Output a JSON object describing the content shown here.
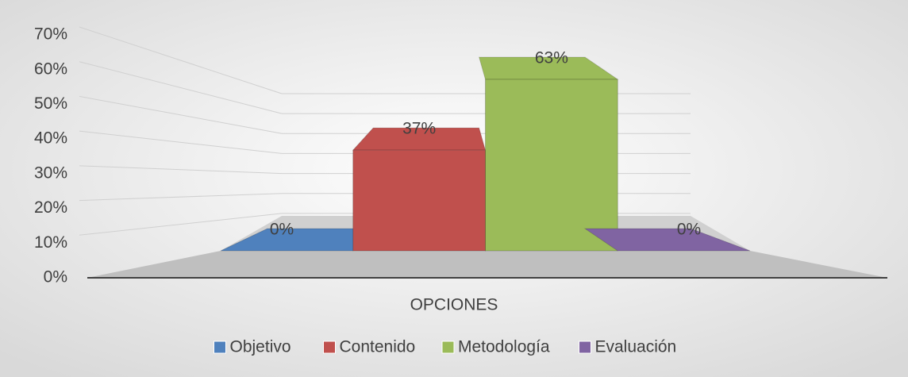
{
  "chart_data": {
    "type": "bar3d",
    "x_label": "OPCIONES",
    "series": [
      {
        "name": "Objetivo",
        "color": "#4f81bd",
        "values": [
          0
        ],
        "value_labels": [
          "0%"
        ]
      },
      {
        "name": "Contenido",
        "color": "#c0504d",
        "values": [
          37
        ],
        "value_labels": [
          "37%"
        ]
      },
      {
        "name": "Metodología",
        "color": "#9bbb59",
        "values": [
          63
        ],
        "value_labels": [
          "63%"
        ]
      },
      {
        "name": "Evaluación",
        "color": "#8064a2",
        "values": [
          0
        ],
        "value_labels": [
          "0%"
        ]
      }
    ],
    "ylim": [
      0,
      70
    ],
    "yticks": [
      {
        "value": 0,
        "label": "0%"
      },
      {
        "value": 10,
        "label": "10%"
      },
      {
        "value": 20,
        "label": "20%"
      },
      {
        "value": 30,
        "label": "30%"
      },
      {
        "value": 40,
        "label": "40%"
      },
      {
        "value": 50,
        "label": "50%"
      },
      {
        "value": 60,
        "label": "60%"
      },
      {
        "value": 70,
        "label": "70%"
      }
    ],
    "grid": true,
    "legend": "bottom"
  }
}
